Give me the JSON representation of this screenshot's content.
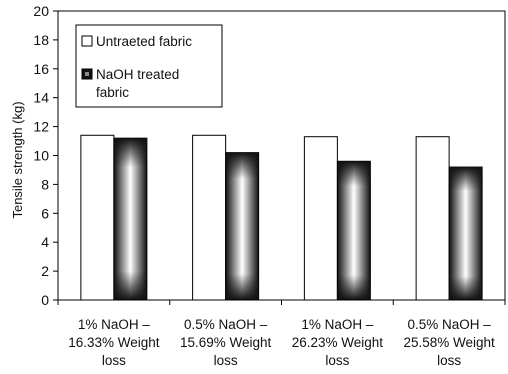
{
  "chart_data": {
    "type": "bar",
    "ylabel": "Tensile strength (kg)",
    "ylim": [
      0,
      20
    ],
    "yticks": [
      0,
      2,
      4,
      6,
      8,
      10,
      12,
      14,
      16,
      18,
      20
    ],
    "categories": [
      [
        "1% NaOH –",
        "16.33% Weight",
        "loss"
      ],
      [
        "0.5% NaOH –",
        "15.69% Weight",
        "loss"
      ],
      [
        "1% NaOH –",
        "26.23% Weight",
        "loss"
      ],
      [
        "0.5% NaOH –",
        "25.58% Weight",
        "loss"
      ]
    ],
    "series": [
      {
        "name": "Untraeted fabric",
        "values": [
          11.4,
          11.4,
          11.3,
          11.3
        ],
        "color": "#ffffff"
      },
      {
        "name_lines": [
          "NaOH treated",
          "fabric"
        ],
        "values": [
          11.2,
          10.2,
          9.6,
          9.2
        ],
        "color": "#1a1a1a"
      }
    ],
    "legend": "top-left",
    "grid": false
  }
}
